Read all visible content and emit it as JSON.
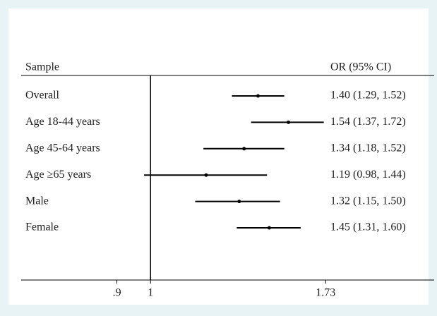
{
  "chart_data": {
    "type": "forest",
    "column_headers": [
      "Sample",
      "OR (95% CI)"
    ],
    "categories": [
      "Overall",
      "Age 18-44 years",
      "Age 45-64 years",
      "Age ≥65 years",
      "Male",
      "Female"
    ],
    "values": [
      1.4,
      1.54,
      1.34,
      1.19,
      1.32,
      1.45
    ],
    "lower": [
      1.29,
      1.37,
      1.18,
      0.98,
      1.15,
      1.31
    ],
    "upper": [
      1.52,
      1.72,
      1.52,
      1.44,
      1.5,
      1.6
    ],
    "value_labels": [
      "1.40 (1.29, 1.52)",
      "1.54 (1.37, 1.72)",
      "1.34 (1.18, 1.52)",
      "1.19 (0.98, 1.44)",
      "1.32 (1.15, 1.50)",
      "1.45 (1.31, 1.60)"
    ],
    "log_x": true,
    "xlim": [
      0.667,
      2.43
    ],
    "xticks": [
      {
        "value": 0.9,
        "label": ".9"
      },
      1,
      1.73
    ],
    "reference_line": 1,
    "color": "#000000"
  }
}
